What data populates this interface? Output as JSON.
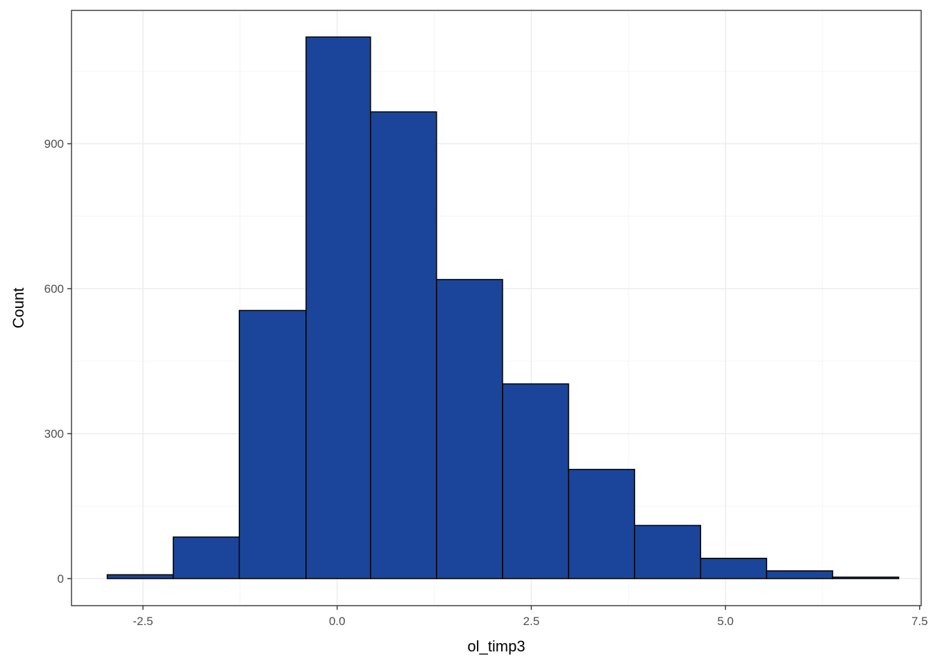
{
  "chart_data": {
    "type": "bar",
    "subtype": "histogram",
    "xlabel": "ol_timp3",
    "ylabel": "Count",
    "xlim": [
      -3.42,
      7.52
    ],
    "ylim": [
      -56,
      1176
    ],
    "x_ticks": [
      -2.5,
      0.0,
      2.5,
      5.0,
      7.5
    ],
    "x_tick_labels": [
      "-2.5",
      "0.0",
      "2.5",
      "5.0",
      "7.5"
    ],
    "y_ticks": [
      0,
      300,
      600,
      900
    ],
    "y_tick_labels": [
      "0",
      "300",
      "600",
      "900"
    ],
    "grid": true,
    "fill_color": "#1A459B",
    "border_color": "#000000",
    "bins": [
      {
        "x0": -2.96,
        "x1": -2.11,
        "count": 8
      },
      {
        "x0": -2.11,
        "x1": -1.26,
        "count": 86
      },
      {
        "x0": -1.26,
        "x1": -0.4,
        "count": 555
      },
      {
        "x0": -0.4,
        "x1": 0.43,
        "count": 1121
      },
      {
        "x0": 0.43,
        "x1": 1.28,
        "count": 966
      },
      {
        "x0": 1.28,
        "x1": 2.13,
        "count": 619
      },
      {
        "x0": 2.13,
        "x1": 2.98,
        "count": 403
      },
      {
        "x0": 2.98,
        "x1": 3.83,
        "count": 226
      },
      {
        "x0": 3.83,
        "x1": 4.68,
        "count": 110
      },
      {
        "x0": 4.68,
        "x1": 5.53,
        "count": 42
      },
      {
        "x0": 5.53,
        "x1": 6.38,
        "count": 16
      },
      {
        "x0": 6.38,
        "x1": 7.23,
        "count": 3
      }
    ]
  }
}
